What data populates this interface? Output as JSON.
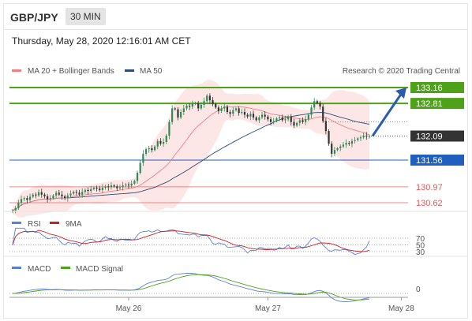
{
  "header": {
    "pair": "GBP/JPY",
    "timeframe": "30 MIN",
    "datetime": "Thursday, May 28, 2020 12:16:01 AM CET"
  },
  "legend": {
    "ma20_label": "MA 20 + Bollinger Bands",
    "ma50_label": "MA 50",
    "credit": "Research © 2020 Trading Central",
    "ma20_color": "#f08080",
    "ma50_color": "#2a4d7a"
  },
  "levels": {
    "resistance": [
      {
        "value": "133.16",
        "color": "#4ea21a"
      },
      {
        "value": "132.81",
        "color": "#4ea21a"
      }
    ],
    "current": {
      "value": "132.09",
      "color": "#333333"
    },
    "pivot": {
      "value": "131.56",
      "color": "#1f5fbf"
    },
    "support": [
      {
        "value": "130.97",
        "color": "#e05a5a"
      },
      {
        "value": "130.62",
        "color": "#e05a5a"
      }
    ]
  },
  "rsi": {
    "label": "RSI",
    "ma_label": "9MA",
    "levels": [
      "70",
      "50",
      "30"
    ],
    "rsi_color": "#5b7fd6",
    "ma_color": "#cc1e1e"
  },
  "macd": {
    "label": "MACD",
    "signal_label": "MACD Signal",
    "zero": "0",
    "macd_color": "#5b7fd6",
    "signal_color": "#4ea21a"
  },
  "x_axis": {
    "ticks": [
      "May 26",
      "May 27",
      "May 28"
    ]
  },
  "chart_data": {
    "type": "candlestick",
    "instrument": "GBP/JPY",
    "interval": "30 MIN",
    "price_axis": {
      "min": 130.5,
      "max": 133.3
    },
    "x_ticks": [
      {
        "label": "May 26",
        "index": 40
      },
      {
        "label": "May 27",
        "index": 88
      },
      {
        "label": "May 28",
        "index": 134
      }
    ],
    "close": [
      130.45,
      130.5,
      130.62,
      130.7,
      130.72,
      130.68,
      130.75,
      130.8,
      130.78,
      130.85,
      130.8,
      130.76,
      130.7,
      130.72,
      130.78,
      130.84,
      130.8,
      130.76,
      130.72,
      130.78,
      130.82,
      130.86,
      130.84,
      130.8,
      130.86,
      130.9,
      130.88,
      130.92,
      130.95,
      130.93,
      130.9,
      130.95,
      130.98,
      130.96,
      131.0,
      130.98,
      130.94,
      130.96,
      131.0,
      131.02,
      131.0,
      131.04,
      131.1,
      131.28,
      131.5,
      131.7,
      131.8,
      131.82,
      131.78,
      131.86,
      131.98,
      131.92,
      131.96,
      132.1,
      132.4,
      132.7,
      132.68,
      132.5,
      132.62,
      132.7,
      132.76,
      132.74,
      132.8,
      132.82,
      132.7,
      132.78,
      132.86,
      132.98,
      132.88,
      132.8,
      132.72,
      132.64,
      132.7,
      132.74,
      132.62,
      132.58,
      132.66,
      132.7,
      132.6,
      132.62,
      132.56,
      132.52,
      132.58,
      132.5,
      132.44,
      132.5,
      132.56,
      132.52,
      132.46,
      132.4,
      132.42,
      132.48,
      132.5,
      132.44,
      132.46,
      132.52,
      132.4,
      132.32,
      132.38,
      132.44,
      132.4,
      132.46,
      132.56,
      132.72,
      132.86,
      132.82,
      132.74,
      132.42,
      132.2,
      131.92,
      131.7,
      131.78,
      131.82,
      131.86,
      131.9,
      131.94,
      131.92,
      131.98,
      132.0,
      132.04,
      132.06,
      132.1,
      132.08,
      132.09
    ],
    "indicators": [
      "MA 20 + Bollinger Bands",
      "MA 50",
      "RSI",
      "9MA",
      "MACD",
      "MACD Signal"
    ],
    "levels": {
      "resistance": [
        133.16,
        132.81
      ],
      "last": 132.09,
      "pivot": 131.56,
      "support": [
        130.97,
        130.62
      ]
    },
    "projection": {
      "from": 132.09,
      "to": 133.16,
      "direction": "up"
    }
  }
}
